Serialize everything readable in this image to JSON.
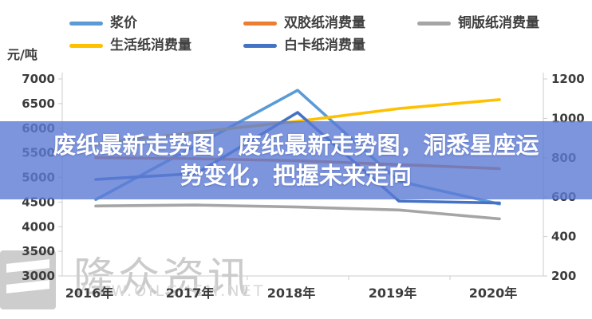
{
  "banner": {
    "lines": [
      "废纸最新走势图，废纸最新走势图，洞悉星座运",
      "势变化，把握未来走向"
    ]
  },
  "y_left_unit": "元/吨",
  "legend": {
    "rows": [
      [
        "浆价",
        "双胶纸消费量",
        "铜版纸消费量"
      ],
      [
        "生活纸消费量",
        "白卡纸消费量"
      ]
    ]
  },
  "watermark": {
    "brand": "隆众资讯",
    "url": "WWW.OILCHEM.NET"
  },
  "chart_data": {
    "type": "line",
    "categories": [
      "2016年",
      "2017年",
      "2018年",
      "2019年",
      "2020年"
    ],
    "left_axis": {
      "label": "元/吨",
      "ylim": [
        3000,
        7000
      ],
      "ticks": [
        7000,
        6500,
        6000,
        5500,
        5000,
        4500,
        4000,
        3500,
        3000
      ]
    },
    "right_axis": {
      "ylim": [
        200,
        1200
      ],
      "ticks": [
        1200,
        1000,
        800,
        600,
        400,
        200
      ]
    },
    "legend_position": "top",
    "grid": false,
    "series": [
      {
        "name": "浆价",
        "axis": "left",
        "color": "#5B9BD5",
        "values": [
          4550,
          5650,
          6770,
          4920,
          4460
        ]
      },
      {
        "name": "双胶纸消费量",
        "axis": "right",
        "color": "#ED7D31",
        "values": [
          800,
          795,
          785,
          765,
          745
        ]
      },
      {
        "name": "铜版纸消费量",
        "axis": "right",
        "color": "#A5A5A5",
        "values": [
          555,
          560,
          550,
          535,
          490
        ]
      },
      {
        "name": "生活纸消费量",
        "axis": "right",
        "color": "#FFC000",
        "values": [
          870,
          930,
          985,
          1050,
          1095
        ]
      },
      {
        "name": "白卡纸消费量",
        "axis": "right",
        "color": "#4472C4",
        "values": [
          690,
          720,
          1030,
          580,
          570
        ]
      }
    ]
  }
}
